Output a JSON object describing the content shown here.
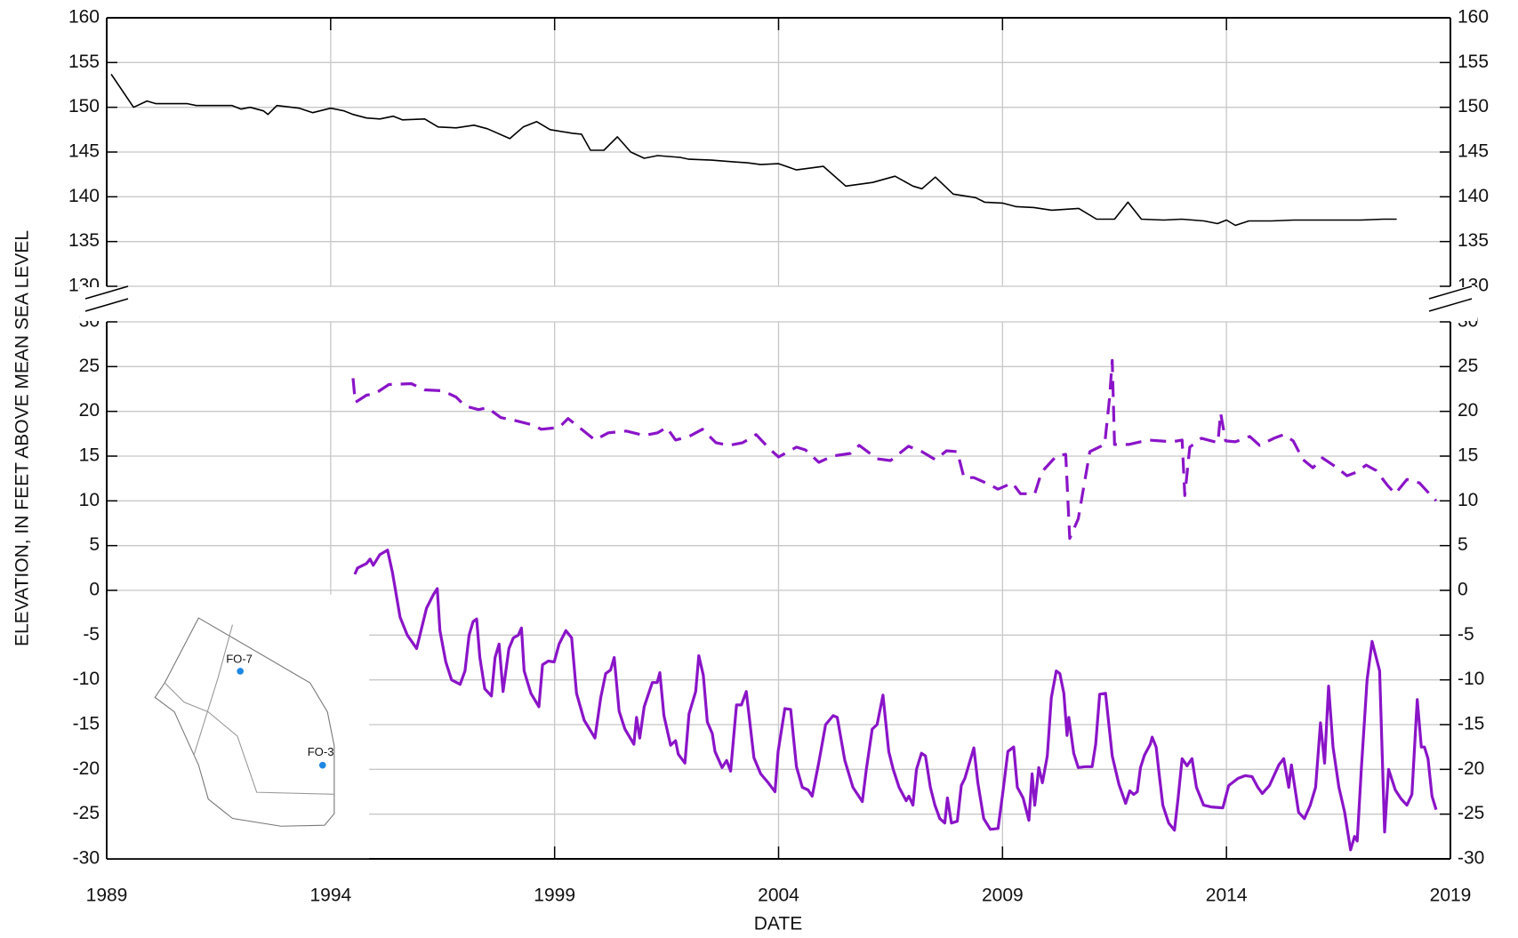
{
  "chart_data": [
    {
      "type": "line",
      "xlim": [
        1989,
        2019
      ],
      "ylim": [
        130,
        160
      ],
      "yticks": [
        130,
        135,
        140,
        145,
        150,
        155,
        160
      ],
      "grid": true,
      "series": [
        {
          "color": "#000000",
          "line_style": "solid",
          "x": [
            1989.1,
            1989.6,
            1989.9,
            1990.1,
            1990.5,
            1990.8,
            1991.0,
            1991.5,
            1991.8,
            1992.0,
            1992.2,
            1992.5,
            1992.6,
            1992.8,
            1993.3,
            1993.6,
            1994.0,
            1994.3,
            1994.5,
            1994.8,
            1995.1,
            1995.4,
            1995.6,
            1996.1,
            1996.4,
            1996.8,
            1997.2,
            1997.5,
            1998.0,
            1998.3,
            1998.6,
            1998.9,
            1999.4,
            1999.6,
            1999.8,
            2000.1,
            2000.4,
            2000.7,
            2001.0,
            2001.3,
            2001.8,
            2002.0,
            2002.5,
            2003.0,
            2003.3,
            2003.6,
            2004.0,
            2004.4,
            2004.7,
            2005.0,
            2005.5,
            2006.1,
            2006.6,
            2007.0,
            2007.2,
            2007.5,
            2007.9,
            2008.4,
            2008.6,
            2009.0,
            2009.3,
            2009.7,
            2010.1,
            2010.7,
            2011.1,
            2011.5,
            2011.8,
            2012.1,
            2012.6,
            2013.0,
            2013.5,
            2013.8,
            2014.0,
            2014.2,
            2014.5,
            2015.0,
            2015.5,
            2016.0,
            2016.5,
            2017.0,
            2017.5,
            2017.8
          ],
          "values": [
            153.7,
            150.0,
            150.7,
            150.4,
            150.4,
            150.4,
            150.2,
            150.2,
            150.2,
            149.8,
            150.0,
            149.6,
            149.2,
            150.2,
            149.9,
            149.4,
            149.9,
            149.6,
            149.2,
            148.8,
            148.7,
            149.0,
            148.6,
            148.7,
            147.8,
            147.7,
            148.0,
            147.6,
            146.5,
            147.8,
            148.4,
            147.5,
            147.1,
            147.0,
            145.2,
            145.2,
            146.7,
            145.0,
            144.3,
            144.6,
            144.4,
            144.2,
            144.1,
            143.9,
            143.8,
            143.6,
            143.7,
            143.0,
            143.2,
            143.4,
            141.2,
            141.6,
            142.3,
            141.2,
            140.9,
            142.2,
            140.3,
            139.9,
            139.4,
            139.3,
            138.9,
            138.8,
            138.5,
            138.7,
            137.5,
            137.5,
            139.4,
            137.5,
            137.4,
            137.5,
            137.3,
            137.0,
            137.4,
            136.8,
            137.3,
            137.3,
            137.4,
            137.4,
            137.4,
            137.4,
            137.5,
            137.5
          ]
        }
      ]
    },
    {
      "type": "line",
      "ylabel": "ELEVATION, IN FEET ABOVE MEAN SEA LEVEL",
      "xlabel": "DATE",
      "xlim": [
        1989,
        2019
      ],
      "xticks": [
        1989,
        1994,
        1999,
        2004,
        2009,
        2014,
        2019
      ],
      "ylim": [
        -30,
        30
      ],
      "yticks": [
        -30,
        -25,
        -20,
        -15,
        -10,
        -5,
        0,
        5,
        10,
        15,
        20,
        25,
        30
      ],
      "grid": true,
      "series": [
        {
          "color": "#8a14c8",
          "line_style": "dashed",
          "x": [
            1994.5,
            1994.55,
            1994.8,
            1995.0,
            1995.3,
            1995.8,
            1996.1,
            1996.5,
            1996.8,
            1997.0,
            1997.3,
            1997.5,
            1997.8,
            1998.1,
            1998.5,
            1998.7,
            1999.1,
            1999.3,
            1999.6,
            1999.9,
            2000.2,
            2000.6,
            2001.0,
            2001.3,
            2001.5,
            2001.7,
            2002.0,
            2002.3,
            2002.6,
            2002.9,
            2003.2,
            2003.5,
            2003.8,
            2004.0,
            2004.4,
            2004.6,
            2004.9,
            2005.2,
            2005.6,
            2005.8,
            2006.2,
            2006.5,
            2006.9,
            2007.2,
            2007.5,
            2007.75,
            2007.99,
            2008.14,
            2008.36,
            2008.68,
            2008.9,
            2009.22,
            2009.4,
            2009.72,
            2009.87,
            2010.2,
            2010.41,
            2010.5,
            2010.69,
            2010.95,
            2011.28,
            2011.39,
            2011.45,
            2011.5,
            2011.82,
            2012.25,
            2012.79,
            2013.01,
            2013.07,
            2013.18,
            2013.44,
            2013.81,
            2013.87,
            2013.98,
            2014.2,
            2014.52,
            2014.74,
            2015.06,
            2015.28,
            2015.49,
            2015.71,
            2015.93,
            2016.14,
            2016.47,
            2016.69,
            2016.9,
            2017.12,
            2017.34,
            2017.6,
            2017.77,
            2018.03,
            2018.31,
            2018.53,
            2018.68
          ],
          "values": [
            23.7,
            21.0,
            21.8,
            22.0,
            23.0,
            23.1,
            22.4,
            22.3,
            21.6,
            20.6,
            20.2,
            20.4,
            19.3,
            19.0,
            18.5,
            18.0,
            18.2,
            19.2,
            18.0,
            16.8,
            17.6,
            17.8,
            17.3,
            17.6,
            18.2,
            16.8,
            17.2,
            18.0,
            16.5,
            16.2,
            16.5,
            17.4,
            15.8,
            14.9,
            16.0,
            15.7,
            14.3,
            15.0,
            15.3,
            16.2,
            14.7,
            14.5,
            16.1,
            15.5,
            14.6,
            15.6,
            15.5,
            12.6,
            12.6,
            11.9,
            11.3,
            12.0,
            10.8,
            10.8,
            13.2,
            15.0,
            15.2,
            5.8,
            8.0,
            15.5,
            16.3,
            21.5,
            25.7,
            16.3,
            16.3,
            16.8,
            16.6,
            16.8,
            10.6,
            16.0,
            17.0,
            16.5,
            19.8,
            16.7,
            16.6,
            17.2,
            16.2,
            17.0,
            17.4,
            16.7,
            14.6,
            13.7,
            14.8,
            13.7,
            12.8,
            13.2,
            14.0,
            13.4,
            11.7,
            10.8,
            12.4,
            12.0,
            10.8,
            10.0
          ]
        },
        {
          "color": "#8a14c8",
          "line_style": "solid",
          "x": [
            1994.54,
            1994.6,
            1994.8,
            1994.88,
            1994.95,
            1995.1,
            1995.27,
            1995.38,
            1995.55,
            1995.71,
            1995.92,
            1996.14,
            1996.29,
            1996.38,
            1996.44,
            1996.57,
            1996.7,
            1996.89,
            1997.0,
            1997.09,
            1997.18,
            1997.26,
            1997.33,
            1997.44,
            1997.59,
            1997.67,
            1997.76,
            1997.85,
            1997.98,
            1998.08,
            1998.19,
            1998.26,
            1998.32,
            1998.47,
            1998.65,
            1998.73,
            1998.86,
            1998.99,
            1999.1,
            1999.25,
            1999.38,
            1999.49,
            1999.66,
            1999.9,
            2000.03,
            2000.14,
            2000.25,
            2000.33,
            2000.44,
            2000.57,
            2000.77,
            2000.83,
            2000.9,
            2001.0,
            2001.18,
            2001.29,
            2001.35,
            2001.44,
            2001.59,
            2001.7,
            2001.76,
            2001.91,
            2002.0,
            2002.15,
            2002.22,
            2002.32,
            2002.41,
            2002.52,
            2002.58,
            2002.74,
            2002.84,
            2002.93,
            2003.06,
            2003.17,
            2003.28,
            2003.45,
            2003.6,
            2003.77,
            2003.92,
            2003.99,
            2004.14,
            2004.27,
            2004.4,
            2004.53,
            2004.66,
            2004.75,
            2004.9,
            2005.05,
            2005.22,
            2005.31,
            2005.48,
            2005.66,
            2005.87,
            2005.96,
            2006.09,
            2006.2,
            2006.33,
            2006.46,
            2006.56,
            2006.69,
            2006.85,
            2006.91,
            2007.0,
            2007.08,
            2007.19,
            2007.28,
            2007.39,
            2007.49,
            2007.6,
            2007.71,
            2007.77,
            2007.86,
            2007.99,
            2008.08,
            2008.16,
            2008.36,
            2008.45,
            2008.58,
            2008.73,
            2008.9,
            2009.01,
            2009.12,
            2009.25,
            2009.33,
            2009.46,
            2009.59,
            2009.66,
            2009.72,
            2009.81,
            2009.89,
            2010.0,
            2010.09,
            2010.2,
            2010.28,
            2010.37,
            2010.44,
            2010.48,
            2010.59,
            2010.69,
            2010.85,
            2011.0,
            2011.08,
            2011.17,
            2011.3,
            2011.45,
            2011.6,
            2011.75,
            2011.84,
            2011.93,
            2012.01,
            2012.08,
            2012.17,
            2012.3,
            2012.34,
            2012.43,
            2012.49,
            2012.58,
            2012.71,
            2012.84,
            2012.92,
            2013.01,
            2013.12,
            2013.23,
            2013.33,
            2013.49,
            2013.66,
            2013.92,
            2014.05,
            2014.26,
            2014.42,
            2014.57,
            2014.7,
            2014.8,
            2014.96,
            2015.17,
            2015.28,
            2015.39,
            2015.45,
            2015.61,
            2015.74,
            2015.87,
            2015.99,
            2016.1,
            2016.19,
            2016.28,
            2016.38,
            2016.51,
            2016.64,
            2016.77,
            2016.86,
            2016.92,
            2017.01,
            2017.14,
            2017.25,
            2017.42,
            2017.53,
            2017.62,
            2017.77,
            2017.9,
            2018.03,
            2018.14,
            2018.26,
            2018.35,
            2018.42,
            2018.5,
            2018.59,
            2018.68
          ],
          "values": [
            1.8,
            2.5,
            3.0,
            3.5,
            2.8,
            4.0,
            4.5,
            2.0,
            -3.0,
            -5.0,
            -6.5,
            -2.0,
            -0.5,
            0.2,
            -4.5,
            -8.0,
            -10.0,
            -10.5,
            -9.0,
            -5.0,
            -3.5,
            -3.2,
            -7.5,
            -11.0,
            -11.8,
            -7.5,
            -6.0,
            -11.3,
            -6.5,
            -5.3,
            -5.0,
            -4.2,
            -9.0,
            -11.5,
            -13.0,
            -8.3,
            -7.9,
            -8.0,
            -6.0,
            -4.5,
            -5.3,
            -11.5,
            -14.5,
            -16.5,
            -12.0,
            -9.3,
            -8.9,
            -7.5,
            -13.5,
            -15.5,
            -17.2,
            -14.2,
            -16.5,
            -13.0,
            -10.3,
            -10.3,
            -9.2,
            -14.0,
            -17.3,
            -16.8,
            -18.3,
            -19.3,
            -13.8,
            -11.3,
            -7.3,
            -9.5,
            -14.7,
            -16.0,
            -18.0,
            -19.8,
            -19.0,
            -20.2,
            -12.8,
            -12.8,
            -11.3,
            -18.7,
            -20.5,
            -21.5,
            -22.5,
            -18.0,
            -13.2,
            -13.3,
            -19.7,
            -22.0,
            -22.3,
            -23.0,
            -19.2,
            -15.0,
            -14.0,
            -14.2,
            -19.0,
            -22.0,
            -23.6,
            -20.0,
            -15.5,
            -15.0,
            -11.7,
            -18.0,
            -20.0,
            -22.0,
            -23.5,
            -23.0,
            -24.0,
            -20.0,
            -18.2,
            -18.5,
            -22.0,
            -24.0,
            -25.5,
            -26.0,
            -23.2,
            -26.0,
            -25.8,
            -21.8,
            -21.0,
            -17.6,
            -21.5,
            -25.5,
            -26.7,
            -26.6,
            -22.5,
            -18.0,
            -17.5,
            -22.0,
            -23.2,
            -25.7,
            -20.5,
            -24.0,
            -19.8,
            -21.5,
            -18.5,
            -12.0,
            -9.0,
            -9.3,
            -11.5,
            -16.2,
            -14.2,
            -18.2,
            -19.8,
            -19.7,
            -19.7,
            -17.2,
            -11.6,
            -11.5,
            -18.5,
            -21.7,
            -23.8,
            -22.4,
            -22.8,
            -22.5,
            -19.8,
            -18.4,
            -17.2,
            -16.4,
            -17.5,
            -20.2,
            -24.0,
            -26.0,
            -26.8,
            -23.2,
            -18.8,
            -19.6,
            -18.8,
            -22.0,
            -24.0,
            -24.2,
            -24.3,
            -21.8,
            -21.0,
            -20.7,
            -20.8,
            -22.0,
            -22.7,
            -21.8,
            -19.5,
            -18.8,
            -22.0,
            -19.5,
            -24.8,
            -25.5,
            -24.0,
            -22.0,
            -14.8,
            -19.3,
            -10.7,
            -17.5,
            -22.0,
            -24.8,
            -29.0,
            -27.5,
            -28.0,
            -20.0,
            -10.0,
            -5.7,
            -9.0,
            -27.0,
            -20.0,
            -22.3,
            -23.3,
            -24.0,
            -22.8,
            -12.2,
            -17.5,
            -17.5,
            -18.8,
            -23.0,
            -24.5
          ]
        }
      ]
    }
  ],
  "inset": {
    "labels": [
      "FO-7",
      "FO-3"
    ]
  }
}
